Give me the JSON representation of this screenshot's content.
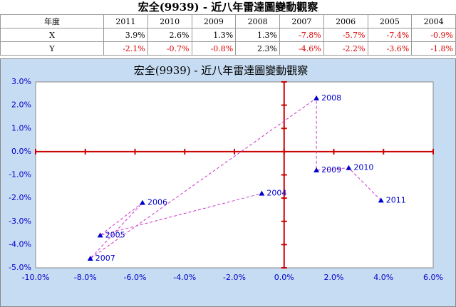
{
  "table": {
    "title": "宏全(9939) - 近八年雷達圖變動觀察",
    "header": [
      "年度",
      "2011",
      "2010",
      "2009",
      "2008",
      "2007",
      "2006",
      "2005",
      "2004"
    ],
    "rows": [
      [
        "X",
        "3.9%",
        "2.6%",
        "1.3%",
        "1.3%",
        "-7.8%",
        "-5.7%",
        "-7.4%",
        "-0.9%"
      ],
      [
        "Y",
        "-2.1%",
        "-0.7%",
        "-0.8%",
        "2.3%",
        "-4.6%",
        "-2.2%",
        "-3.6%",
        "-1.8%"
      ]
    ]
  },
  "chart_data": {
    "type": "scatter",
    "title": "宏全(9939) - 近八年雷達圖變動觀察",
    "series": [
      {
        "labels": [
          "2011",
          "2010",
          "2009",
          "2008",
          "2007",
          "2006",
          "2005",
          "2004"
        ],
        "x": [
          3.9,
          2.6,
          1.3,
          1.3,
          -7.8,
          -5.7,
          -7.4,
          -0.9
        ],
        "y": [
          -2.1,
          -0.7,
          -0.8,
          2.3,
          -4.6,
          -2.2,
          -3.6,
          -1.8
        ],
        "color": "#0000cc",
        "line_color": "#cc33cc",
        "line_style": "dashed"
      }
    ],
    "xlim": [
      -10,
      6
    ],
    "xticks": [
      {
        "value": -10,
        "label": "-10.0%"
      },
      {
        "value": -8,
        "label": "-8.0%"
      },
      {
        "value": -6,
        "label": "-6.0%"
      },
      {
        "value": -4,
        "label": "-4.0%"
      },
      {
        "value": -2,
        "label": "-2.0%"
      },
      {
        "value": 0,
        "label": "0.0%"
      },
      {
        "value": 2,
        "label": "2.0%"
      },
      {
        "value": 4,
        "label": "4.0%"
      },
      {
        "value": 6,
        "label": "6.0%"
      }
    ],
    "ylim": [
      -5,
      3
    ],
    "yticks": [
      {
        "value": 3,
        "label": "3.0%"
      },
      {
        "value": 2,
        "label": "2.0%"
      },
      {
        "value": 1,
        "label": "1.0%"
      },
      {
        "value": 0,
        "label": "0.0%"
      },
      {
        "value": -1,
        "label": "-1.0%"
      },
      {
        "value": -2,
        "label": "-2.0%"
      },
      {
        "value": -3,
        "label": "-3.0%"
      },
      {
        "value": -4,
        "label": "-4.0%"
      },
      {
        "value": -5,
        "label": "-5.0%"
      }
    ],
    "axis_color": "#cc0000",
    "tick_label_color": "#0000cc",
    "background": "#c6dcf2"
  }
}
